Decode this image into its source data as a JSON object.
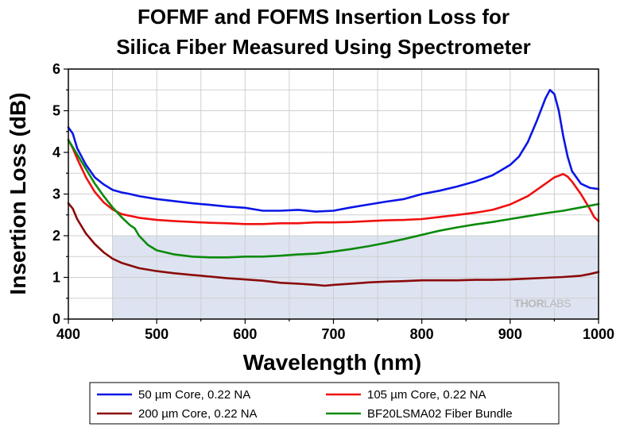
{
  "chart_data": {
    "type": "line",
    "title_lines": [
      "FOFMF and FOFMS Insertion Loss for",
      "Silica Fiber Measured Using Spectrometer"
    ],
    "xlabel": "Wavelength (nm)",
    "ylabel": "Insertion Loss (dB)",
    "xlim": [
      400,
      1000
    ],
    "ylim": [
      0,
      6
    ],
    "xticks": [
      400,
      500,
      600,
      700,
      800,
      900,
      1000
    ],
    "yticks": [
      0,
      1,
      2,
      3,
      4,
      5,
      6
    ],
    "grid": true,
    "legend_position": "bottom",
    "shaded_region": {
      "x": [
        450,
        1000
      ],
      "y": [
        0,
        2
      ],
      "color": "#dde3f1"
    },
    "watermark": {
      "part1": "THOR",
      "part2": "LABS"
    },
    "series": [
      {
        "name": "50 µm Core, 0.22 NA",
        "color": "#0a16e6",
        "x": [
          400,
          405,
          410,
          420,
          430,
          440,
          450,
          460,
          470,
          480,
          500,
          520,
          540,
          560,
          580,
          600,
          620,
          640,
          660,
          680,
          700,
          720,
          740,
          760,
          780,
          800,
          820,
          840,
          860,
          880,
          900,
          910,
          920,
          930,
          940,
          945,
          950,
          955,
          960,
          965,
          970,
          980,
          990,
          1000
        ],
        "y": [
          4.6,
          4.45,
          4.1,
          3.7,
          3.4,
          3.23,
          3.1,
          3.04,
          3.0,
          2.95,
          2.88,
          2.83,
          2.78,
          2.74,
          2.7,
          2.67,
          2.6,
          2.6,
          2.62,
          2.58,
          2.6,
          2.68,
          2.75,
          2.82,
          2.88,
          3.0,
          3.08,
          3.18,
          3.3,
          3.45,
          3.7,
          3.9,
          4.25,
          4.75,
          5.3,
          5.5,
          5.4,
          5.0,
          4.4,
          3.9,
          3.55,
          3.25,
          3.15,
          3.12
        ]
      },
      {
        "name": "105 µm Core, 0.22 NA",
        "color": "#f01010",
        "x": [
          400,
          405,
          410,
          420,
          430,
          440,
          450,
          460,
          480,
          500,
          520,
          540,
          560,
          580,
          600,
          620,
          640,
          660,
          680,
          700,
          720,
          740,
          760,
          780,
          800,
          820,
          840,
          860,
          880,
          900,
          920,
          940,
          950,
          960,
          965,
          970,
          980,
          990,
          995,
          1000
        ],
        "y": [
          4.3,
          4.1,
          3.85,
          3.4,
          3.05,
          2.8,
          2.63,
          2.52,
          2.43,
          2.38,
          2.35,
          2.33,
          2.31,
          2.3,
          2.28,
          2.28,
          2.3,
          2.3,
          2.32,
          2.32,
          2.33,
          2.35,
          2.37,
          2.38,
          2.4,
          2.45,
          2.5,
          2.55,
          2.62,
          2.75,
          2.95,
          3.25,
          3.4,
          3.48,
          3.42,
          3.3,
          3.0,
          2.65,
          2.45,
          2.35
        ]
      },
      {
        "name": "200 µm Core, 0.22 NA",
        "color": "#8b0a0a",
        "x": [
          400,
          405,
          410,
          420,
          430,
          440,
          450,
          460,
          480,
          500,
          520,
          540,
          560,
          580,
          600,
          620,
          640,
          660,
          680,
          690,
          700,
          720,
          740,
          760,
          780,
          800,
          820,
          840,
          860,
          880,
          900,
          920,
          940,
          960,
          980,
          990,
          1000
        ],
        "y": [
          2.78,
          2.65,
          2.4,
          2.05,
          1.8,
          1.6,
          1.45,
          1.35,
          1.22,
          1.15,
          1.1,
          1.06,
          1.02,
          0.98,
          0.95,
          0.92,
          0.87,
          0.85,
          0.82,
          0.8,
          0.82,
          0.85,
          0.88,
          0.9,
          0.91,
          0.93,
          0.93,
          0.93,
          0.94,
          0.94,
          0.95,
          0.97,
          0.99,
          1.01,
          1.04,
          1.08,
          1.13
        ]
      },
      {
        "name": "BF20LSMA02 Fiber Bundle",
        "color": "#0b8a0b",
        "x": [
          400,
          410,
          420,
          430,
          440,
          450,
          460,
          470,
          475,
          480,
          490,
          500,
          520,
          540,
          560,
          580,
          600,
          620,
          640,
          660,
          680,
          700,
          720,
          740,
          760,
          780,
          800,
          820,
          840,
          860,
          880,
          900,
          920,
          940,
          960,
          980,
          1000
        ],
        "y": [
          4.3,
          3.95,
          3.6,
          3.25,
          2.95,
          2.68,
          2.45,
          2.25,
          2.18,
          2.0,
          1.78,
          1.65,
          1.55,
          1.5,
          1.48,
          1.48,
          1.5,
          1.5,
          1.52,
          1.55,
          1.57,
          1.62,
          1.68,
          1.75,
          1.83,
          1.92,
          2.02,
          2.12,
          2.2,
          2.27,
          2.33,
          2.4,
          2.47,
          2.54,
          2.6,
          2.68,
          2.76
        ]
      }
    ]
  }
}
